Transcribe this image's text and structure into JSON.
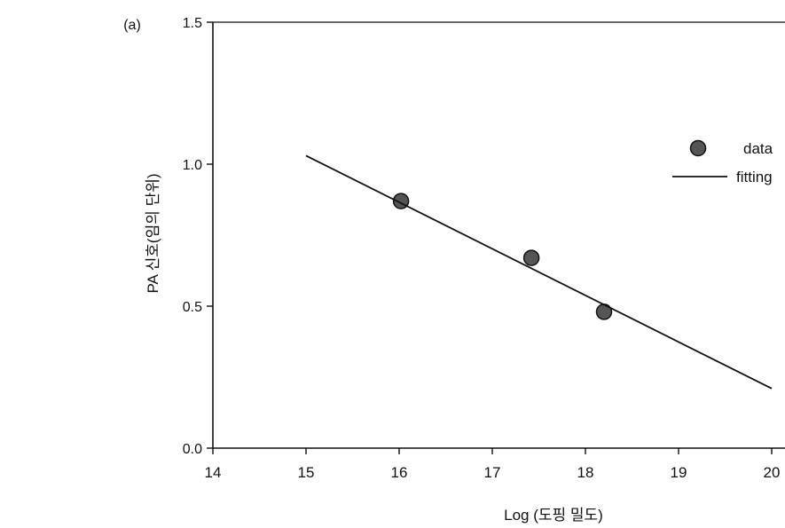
{
  "chart_data": {
    "type": "scatter",
    "panel_label": "(a)",
    "xlabel": "Log (도핑 밀도)",
    "ylabel": "PA 신호(임의 단위)",
    "xlim": [
      14,
      20
    ],
    "ylim": [
      0,
      1.5
    ],
    "x_ticks": [
      {
        "value": 14,
        "label": "14"
      },
      {
        "value": 15,
        "label": "15"
      },
      {
        "value": 16,
        "label": "16"
      },
      {
        "value": 17,
        "label": "17"
      },
      {
        "value": 18,
        "label": "18"
      },
      {
        "value": 19,
        "label": "19"
      },
      {
        "value": 20,
        "label": "20"
      }
    ],
    "y_ticks": [
      {
        "value": 0.0,
        "label": "0.0"
      },
      {
        "value": 0.5,
        "label": "0.5"
      },
      {
        "value": 1.0,
        "label": "1.0"
      },
      {
        "value": 1.5,
        "label": "1.5"
      }
    ],
    "series": [
      {
        "name": "data",
        "kind": "scatter",
        "color": "#555555",
        "points": [
          {
            "x": 16.02,
            "y": 0.87
          },
          {
            "x": 17.42,
            "y": 0.67
          },
          {
            "x": 18.2,
            "y": 0.48
          }
        ]
      },
      {
        "name": "fitting",
        "kind": "line",
        "color": "#111111",
        "points": [
          {
            "x": 15.0,
            "y": 1.03
          },
          {
            "x": 20.0,
            "y": 0.21
          }
        ]
      }
    ],
    "legend_position": "top-right",
    "grid": false
  }
}
